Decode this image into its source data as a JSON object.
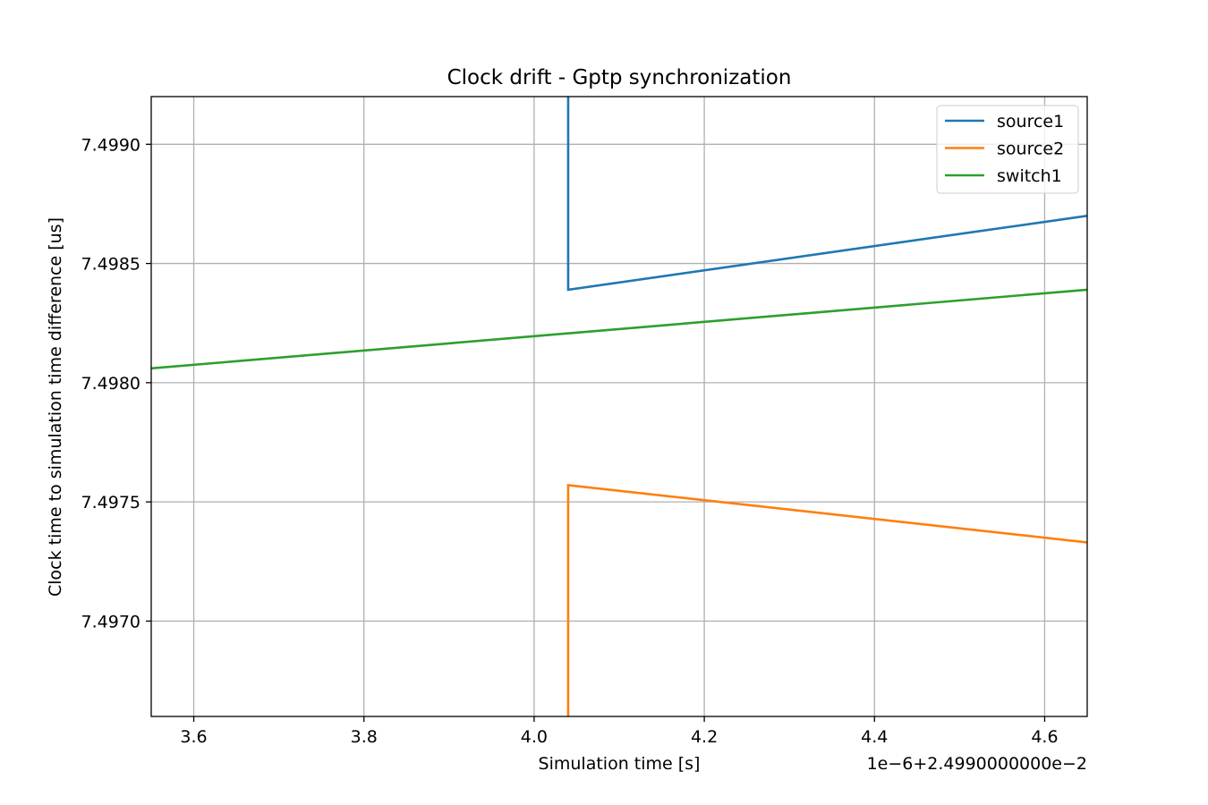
{
  "chart_data": {
    "type": "line",
    "title": "Clock drift - Gptp synchronization",
    "xlabel": "Simulation time [s]",
    "ylabel": "Clock time to simulation time difference [us]",
    "x_offset_text": "1e−6+2.4990000000e−2",
    "xlim": [
      3.55,
      4.65
    ],
    "ylim": [
      7.4966,
      7.4992
    ],
    "xticks": [
      3.6,
      3.8,
      4.0,
      4.2,
      4.4,
      4.6
    ],
    "xtick_labels": [
      "3.6",
      "3.8",
      "4.0",
      "4.2",
      "4.4",
      "4.6"
    ],
    "yticks": [
      7.497,
      7.4975,
      7.498,
      7.4985,
      7.499
    ],
    "ytick_labels": [
      "7.4970",
      "7.4975",
      "7.4980",
      "7.4985",
      "7.4990"
    ],
    "grid": true,
    "legend_position": "top-right",
    "series": [
      {
        "name": "source1",
        "color": "#1f77b4",
        "points": [
          [
            4.04,
            7.4993
          ],
          [
            4.04,
            7.49839
          ],
          [
            4.65,
            7.4987
          ]
        ]
      },
      {
        "name": "source2",
        "color": "#ff7f0e",
        "points": [
          [
            4.04,
            7.4965
          ],
          [
            4.04,
            7.49757
          ],
          [
            4.65,
            7.49733
          ]
        ]
      },
      {
        "name": "switch1",
        "color": "#2ca02c",
        "points": [
          [
            3.55,
            7.49806
          ],
          [
            4.65,
            7.49839
          ]
        ]
      }
    ]
  }
}
